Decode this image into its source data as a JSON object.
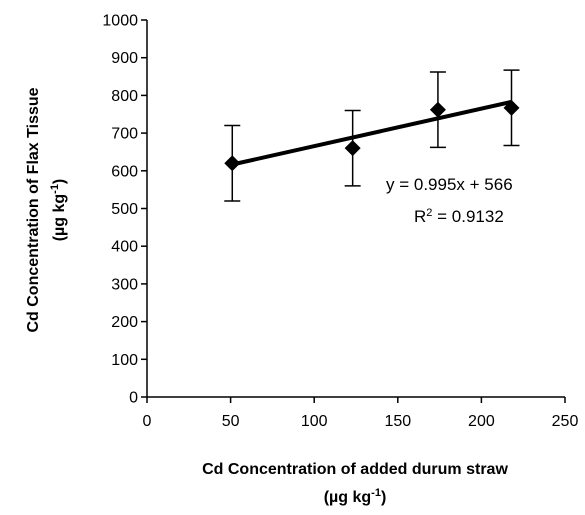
{
  "chart_data": {
    "type": "scatter",
    "xlabel_line1": "Cd Concentration of added durum straw",
    "xlabel_line2_prefix": "(µg kg",
    "xlabel_line2_sup": "-1",
    "xlabel_line2_suffix": ")",
    "ylabel_line1": "Cd Concentration of Flax Tissue",
    "ylabel_line2_prefix": "(µg kg",
    "ylabel_line2_sup": "-1",
    "ylabel_line2_suffix": ")",
    "xlim": [
      0,
      250
    ],
    "ylim": [
      0,
      1000
    ],
    "xticks": [
      0,
      50,
      100,
      150,
      200,
      250
    ],
    "yticks": [
      0,
      100,
      200,
      300,
      400,
      500,
      600,
      700,
      800,
      900,
      1000
    ],
    "grid": false,
    "series": [
      {
        "marker": "diamond",
        "x": [
          51,
          123,
          174,
          218
        ],
        "y": [
          620,
          660,
          762,
          767
        ],
        "error": [
          100,
          100,
          100,
          100
        ]
      }
    ],
    "trendline": {
      "slope": 0.995,
      "intercept": 566,
      "x_start": 51,
      "x_end": 218
    },
    "equation_text": "y = 0.995x + 566",
    "r2_prefix": "R",
    "r2_sup": "2",
    "r2_value": " = 0.9132"
  }
}
